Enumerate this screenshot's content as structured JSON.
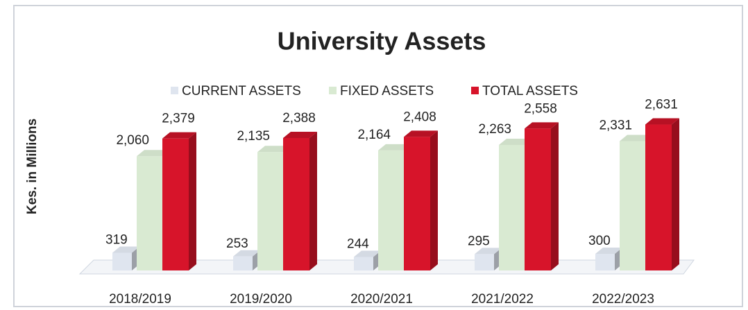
{
  "chart_data": {
    "type": "bar3d",
    "title": "University Assets",
    "y_label": "Kes. in Millions",
    "categories": [
      "2018/2019",
      "2019/2020",
      "2020/2021",
      "2021/2022",
      "2022/2023"
    ],
    "series": [
      {
        "name": "CURRENT ASSETS",
        "color": "#dfe5ef",
        "values": [
          319,
          253,
          244,
          295,
          300
        ]
      },
      {
        "name": "FIXED ASSETS",
        "color": "#d9ead2",
        "values": [
          2060,
          2135,
          2164,
          2263,
          2331
        ],
        "value_labels": [
          "2,060",
          "2,135",
          "2,164",
          "2,263",
          "2,331"
        ]
      },
      {
        "name": "TOTAL ASSETS",
        "color": "#d7142a",
        "values": [
          2379,
          2388,
          2408,
          2558,
          2631
        ],
        "value_labels": [
          "2,379",
          "2,388",
          "2,408",
          "2,558",
          "2,631"
        ]
      }
    ],
    "ylim": [
      0,
      3000
    ],
    "legend": "top"
  }
}
